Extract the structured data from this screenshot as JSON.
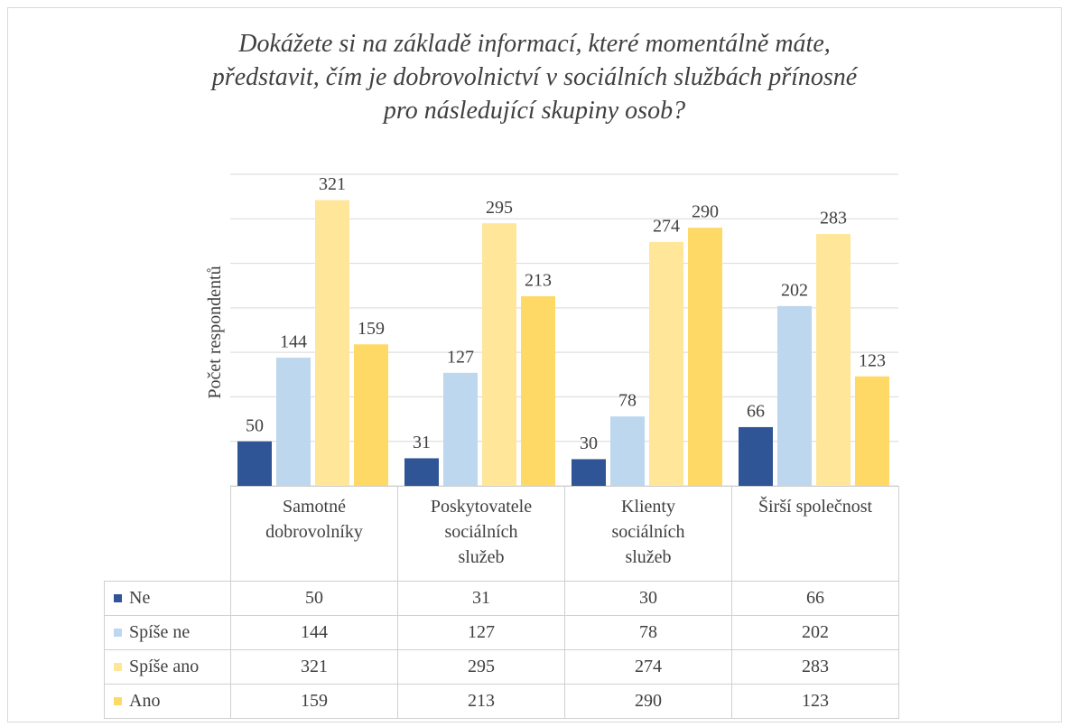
{
  "chart_data": {
    "type": "bar",
    "title": "Dokážete si na základě informací, které momentálně máte, představit, čím je dobrovolnictví v sociálních službách přínosné pro následující skupiny osob?",
    "y_label": "Počet respondentů",
    "categories": [
      "Samotné dobrovolníky",
      "Poskytovatele sociálních služeb",
      "Klienty sociálních služeb",
      "Širší společnost"
    ],
    "series": [
      {
        "name": "Ne",
        "color": "#2f5597",
        "values": [
          50,
          31,
          30,
          66
        ]
      },
      {
        "name": "Spíše ne",
        "color": "#bdd7ee",
        "values": [
          144,
          127,
          78,
          202
        ]
      },
      {
        "name": "Spíše ano",
        "color": "#ffe699",
        "values": [
          321,
          295,
          274,
          283
        ]
      },
      {
        "name": "Ano",
        "color": "#ffd966",
        "values": [
          159,
          213,
          290,
          123
        ]
      }
    ],
    "ylim": [
      0,
      350
    ],
    "yticks": [
      0,
      50,
      100,
      150,
      200,
      250,
      300,
      350
    ],
    "grid": true
  }
}
